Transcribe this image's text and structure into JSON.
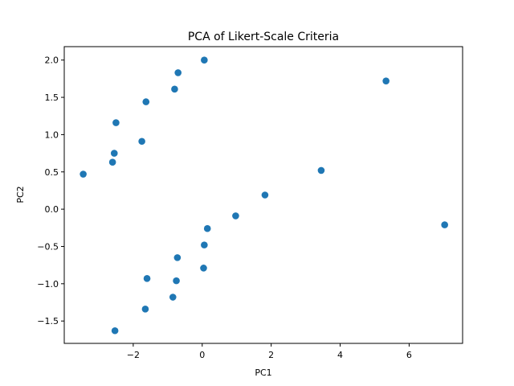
{
  "chart_data": {
    "type": "scatter",
    "title": "PCA of Likert-Scale Criteria",
    "xlabel": "PC1",
    "ylabel": "PC2",
    "xlim": [
      -4.0,
      7.55
    ],
    "ylim": [
      -1.8,
      2.18
    ],
    "x_ticks": [
      -2,
      0,
      2,
      4,
      6
    ],
    "y_ticks": [
      -1.5,
      -1.0,
      -0.5,
      0.0,
      0.5,
      1.0,
      1.5,
      2.0
    ],
    "grid": false,
    "marker_color": "#1f77b4",
    "points": [
      {
        "x": 0.06,
        "y": 2.0
      },
      {
        "x": -0.7,
        "y": 1.83
      },
      {
        "x": -0.8,
        "y": 1.61
      },
      {
        "x": -1.63,
        "y": 1.44
      },
      {
        "x": -2.5,
        "y": 1.16
      },
      {
        "x": -1.75,
        "y": 0.91
      },
      {
        "x": -2.55,
        "y": 0.75
      },
      {
        "x": -2.6,
        "y": 0.63
      },
      {
        "x": -3.45,
        "y": 0.47
      },
      {
        "x": 5.33,
        "y": 1.72
      },
      {
        "x": 3.45,
        "y": 0.52
      },
      {
        "x": 1.82,
        "y": 0.19
      },
      {
        "x": 0.97,
        "y": -0.09
      },
      {
        "x": 0.15,
        "y": -0.26
      },
      {
        "x": 0.06,
        "y": -0.48
      },
      {
        "x": -0.72,
        "y": -0.65
      },
      {
        "x": 0.04,
        "y": -0.79
      },
      {
        "x": -1.6,
        "y": -0.93
      },
      {
        "x": -0.75,
        "y": -0.96
      },
      {
        "x": -0.85,
        "y": -1.18
      },
      {
        "x": -1.65,
        "y": -1.34
      },
      {
        "x": -2.53,
        "y": -1.63
      },
      {
        "x": 7.03,
        "y": -0.21
      }
    ]
  }
}
